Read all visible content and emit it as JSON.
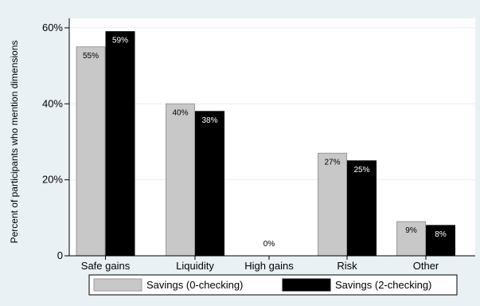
{
  "chart_data": {
    "type": "bar",
    "categories": [
      "Safe gains",
      "Liquidity",
      "High gains",
      "Risk",
      "Other"
    ],
    "series": [
      {
        "name": "Savings (0-checking)",
        "color": "#c8c8c8",
        "values": [
          55,
          40,
          0,
          27,
          9
        ],
        "labels": [
          "55%",
          "40%",
          "0%",
          "27%",
          "9%"
        ]
      },
      {
        "name": "Savings (2-checking)",
        "color": "#000000",
        "values": [
          59,
          38,
          0,
          25,
          8
        ],
        "labels": [
          "59%",
          "38%",
          "",
          "25%",
          "8%"
        ]
      }
    ],
    "ylabel": "Percent of participants who mention dimensions",
    "yticks": [
      0,
      20,
      40,
      60
    ],
    "ytick_labels": [
      "0",
      "20%",
      "40%",
      "60%"
    ],
    "ylim": [
      0,
      62.5
    ],
    "grid": true,
    "legend_position": "bottom"
  }
}
